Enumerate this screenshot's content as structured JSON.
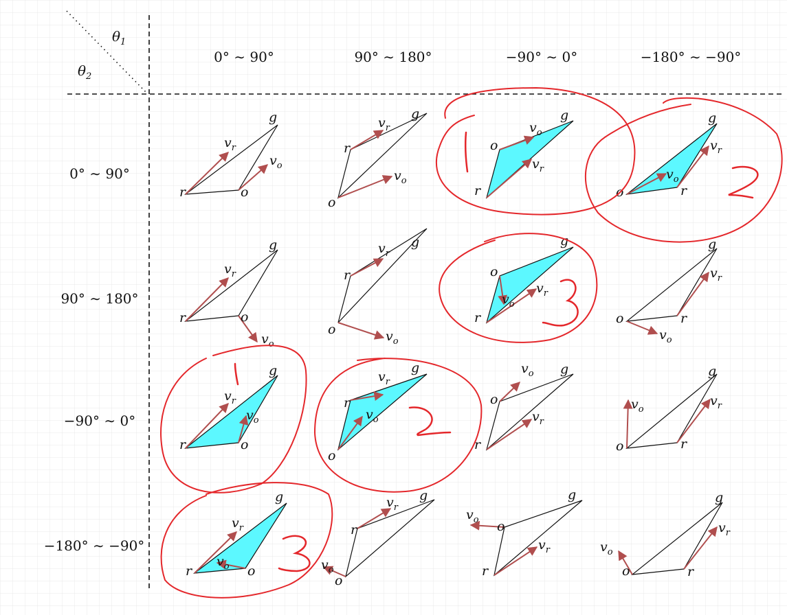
{
  "header": {
    "theta1": "θ",
    "theta1_sub": "1",
    "theta2": "θ",
    "theta2_sub": "2"
  },
  "columns": [
    "0° ∼ 90°",
    "90° ∼ 180°",
    "−90° ∼ 0°",
    "−180° ∼ −90°"
  ],
  "rows": [
    "0° ∼ 90°",
    "90° ∼ 180°",
    "−90° ∼ 0°",
    "−180° ∼ −90°"
  ],
  "point_labels": {
    "r": "r",
    "o": "o",
    "g": "g",
    "v": "v",
    "vr_sub": "r",
    "vo_sub": "o"
  },
  "handwritten_marks": [
    "1",
    "2",
    "3",
    "1",
    "2",
    "3"
  ],
  "colors": {
    "fill": "#5cf8ff",
    "arrow": "#b04e4e",
    "annotation": "#e4272b",
    "grid": "#e9e9e9",
    "line": "#111111"
  },
  "cells": [
    {
      "row": 0,
      "col": 0,
      "filled": false
    },
    {
      "row": 0,
      "col": 1,
      "filled": false
    },
    {
      "row": 0,
      "col": 2,
      "filled": true,
      "circled": true,
      "mark": "1"
    },
    {
      "row": 0,
      "col": 3,
      "filled": true,
      "circled": true,
      "mark": "2"
    },
    {
      "row": 1,
      "col": 0,
      "filled": false
    },
    {
      "row": 1,
      "col": 1,
      "filled": false
    },
    {
      "row": 1,
      "col": 2,
      "filled": true,
      "circled": true,
      "mark": "3"
    },
    {
      "row": 1,
      "col": 3,
      "filled": false
    },
    {
      "row": 2,
      "col": 0,
      "filled": true,
      "circled": true,
      "mark": "1"
    },
    {
      "row": 2,
      "col": 1,
      "filled": true,
      "circled": true,
      "mark": "2"
    },
    {
      "row": 2,
      "col": 2,
      "filled": false
    },
    {
      "row": 2,
      "col": 3,
      "filled": false
    },
    {
      "row": 3,
      "col": 0,
      "filled": true,
      "circled": true,
      "mark": "3"
    },
    {
      "row": 3,
      "col": 1,
      "filled": false
    },
    {
      "row": 3,
      "col": 2,
      "filled": false
    },
    {
      "row": 3,
      "col": 3,
      "filled": false
    }
  ]
}
